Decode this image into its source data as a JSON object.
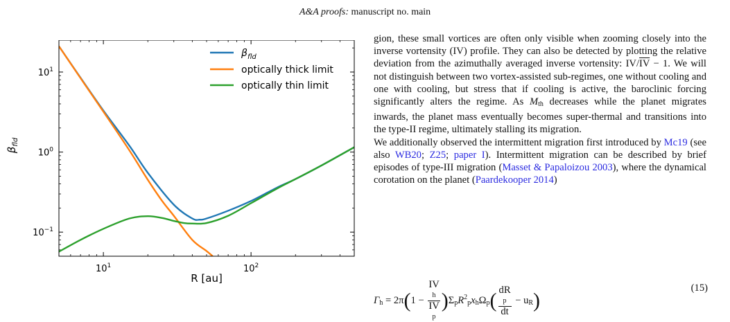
{
  "header": {
    "journal": "A&A proofs:",
    "manuscript": "manuscript no. main"
  },
  "chart_data": {
    "type": "line",
    "xlabel": "R [au]",
    "ylabel": "β_fld",
    "xscale": "log",
    "yscale": "log",
    "xlim": [
      5,
      500
    ],
    "ylim": [
      0.05,
      25
    ],
    "x_ticks": [
      "10^1",
      "10^2"
    ],
    "y_ticks": [
      "10^-1",
      "10^0",
      "10^1"
    ],
    "legend_position": "top-right",
    "series": [
      {
        "name": "β_fld",
        "color": "#1f77b4",
        "x": [
          5,
          7,
          10,
          15,
          20,
          30,
          40,
          45,
          50,
          70,
          100,
          150,
          200,
          300,
          500
        ],
        "y": [
          21,
          8.5,
          3.3,
          1.2,
          0.55,
          0.22,
          0.148,
          0.143,
          0.148,
          0.185,
          0.245,
          0.36,
          0.46,
          0.68,
          1.15
        ]
      },
      {
        "name": "optically thick limit",
        "color": "#ff7f0e",
        "x": [
          5,
          7,
          10,
          15,
          20,
          25,
          30,
          40,
          50,
          55
        ],
        "y": [
          21,
          8.4,
          3.2,
          1.05,
          0.45,
          0.245,
          0.16,
          0.08,
          0.058,
          0.05
        ]
      },
      {
        "name": "optically thin limit",
        "color": "#2ca02c",
        "x": [
          5,
          7,
          10,
          15,
          20,
          25,
          30,
          35,
          40,
          50,
          70,
          100,
          150,
          200,
          300,
          500
        ],
        "y": [
          0.057,
          0.08,
          0.11,
          0.148,
          0.158,
          0.15,
          0.138,
          0.13,
          0.128,
          0.13,
          0.16,
          0.23,
          0.35,
          0.46,
          0.68,
          1.15
        ]
      }
    ],
    "legend_labels": {
      "beta_base": "β",
      "beta_sub": "fld",
      "thick": "optically thick limit",
      "thin": "optically thin limit"
    },
    "axis_text": {
      "xlabel": "R [au]",
      "ylabel_base": "β",
      "ylabel_sub": "fld",
      "xtick_base": "10",
      "ytick_base": "10"
    }
  },
  "text": {
    "p1_a": "gion, these small vortices are often only visible when zooming closely into the inverse vortensity (IV) profile. They can also be detected by plotting the relative deviation from the azimuthally averaged inverse vortensity: IV/",
    "p1_over": "IV",
    "p1_b": " − 1. We will not distinguish between two vortex-assisted sub-regimes, one without cooling and one with cooling, but stress that if cooling is active, the baroclinic forcing significantly alters the regime. As ",
    "p1_M": "M",
    "p1_Msub": "th",
    "p1_c": " decreases while the planet migrates inwards, the planet mass eventually becomes super-thermal and transitions into the type-II regime, ultimately stalling its migration.",
    "p2_a": "We additionally observed the intermittent migration first introduced by ",
    "ref_mc19": "Mc19",
    "p2_b": " (see also ",
    "ref_wb20": "WB20",
    "sep1": "; ",
    "ref_z25": "Z25",
    "sep2": "; ",
    "ref_paper1": "paper I",
    "p2_c": "). Intermittent migration can be described by brief episodes of type-III migration (",
    "ref_masset": "Masset & Papaloizou 2003",
    "p2_d": "), where the dynamical corotation on the planet (",
    "ref_paard": "Paardekooper 2014",
    "p2_e": ")"
  },
  "equation": {
    "lhs": "Γ",
    "lhs_sub": "h",
    "eq": " = 2π",
    "one_minus": "1 − ",
    "frac1_num": "IV",
    "frac1_num_sub": "h",
    "frac1_den": "IV",
    "frac1_den_sub": "p",
    "mid": "Σ",
    "mid_sub": "p",
    "R": "R",
    "R_sup": "2",
    "R_sub": "p",
    "x": "x",
    "x_sub": "h",
    "omega": "Ω",
    "omega_sub": "p",
    "frac2_num": "dR",
    "frac2_num_sub": "p",
    "frac2_den": "dt",
    "minus_u": " − u",
    "u_sub": "R",
    "number": "(15)"
  }
}
